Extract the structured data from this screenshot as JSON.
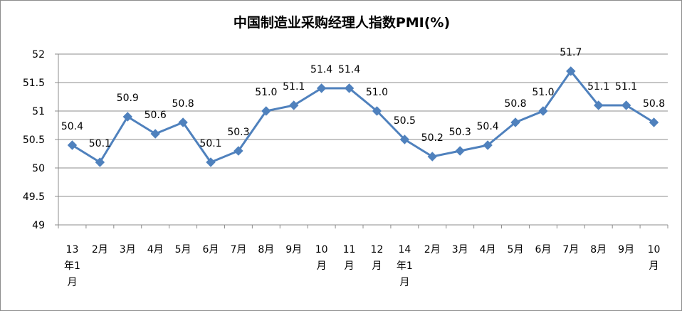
{
  "chart_data": {
    "type": "line",
    "title": "中国制造业采购经理人指数PMI(%)",
    "xlabel": "",
    "ylabel": "",
    "ylim": [
      49,
      52
    ],
    "yticks": [
      "49",
      "49.5",
      "50",
      "50.5",
      "51",
      "51.5",
      "52"
    ],
    "grid": true,
    "legend": "none",
    "line_color": "#4f81bd",
    "categories": [
      [
        "13",
        "年1",
        "月"
      ],
      [
        "2月"
      ],
      [
        "3月"
      ],
      [
        "4月"
      ],
      [
        "5月"
      ],
      [
        "6月"
      ],
      [
        "7月"
      ],
      [
        "8月"
      ],
      [
        "9月"
      ],
      [
        "10",
        "月"
      ],
      [
        "11",
        "月"
      ],
      [
        "12",
        "月"
      ],
      [
        "14",
        "年1",
        "月"
      ],
      [
        "2月"
      ],
      [
        "3月"
      ],
      [
        "4月"
      ],
      [
        "5月"
      ],
      [
        "6月"
      ],
      [
        "7月"
      ],
      [
        "8月"
      ],
      [
        "9月"
      ],
      [
        "10",
        "月"
      ]
    ],
    "values": [
      50.4,
      50.1,
      50.9,
      50.6,
      50.8,
      50.1,
      50.3,
      51.0,
      51.1,
      51.4,
      51.4,
      51.0,
      50.5,
      50.2,
      50.3,
      50.4,
      50.8,
      51.0,
      51.7,
      51.1,
      51.1,
      50.8
    ],
    "data_labels": [
      "50.4",
      "50.1",
      "50.9",
      "50.6",
      "50.8",
      "50.1",
      "50.3",
      "51.0",
      "51.1",
      "51.4",
      "51.4",
      "51.0",
      "50.5",
      "50.2",
      "50.3",
      "50.4",
      "50.8",
      "51.0",
      "51.7",
      "51.1",
      "51.1",
      "50.8"
    ]
  }
}
